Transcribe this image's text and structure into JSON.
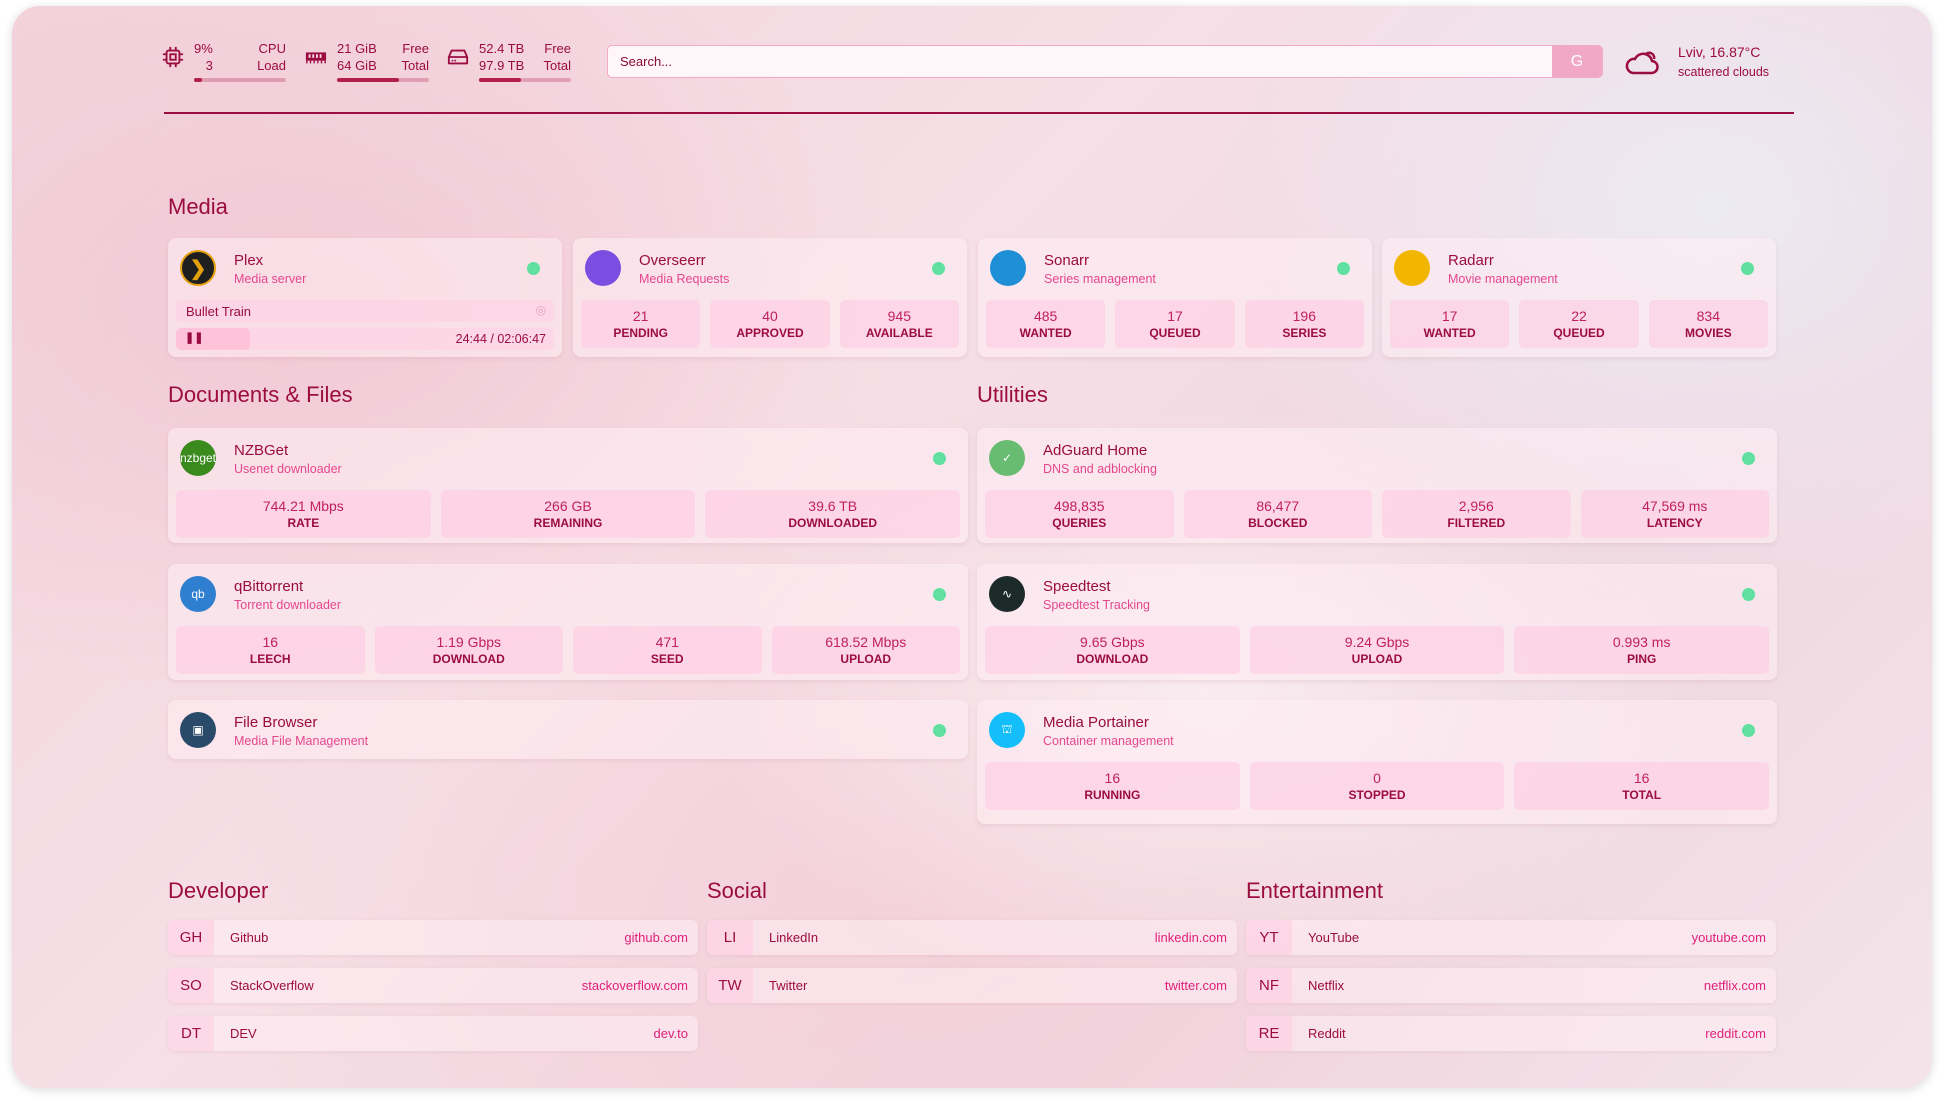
{
  "header": {
    "cpu": {
      "usage": "9%",
      "cores": "3",
      "label1": "CPU",
      "label2": "Load",
      "percent": 9
    },
    "memory": {
      "free": "21 GiB",
      "total": "64 GiB",
      "label1": "Free",
      "label2": "Total",
      "percent": 67
    },
    "disk": {
      "free": "52.4 TB",
      "total": "97.9 TB",
      "label1": "Free",
      "label2": "Total",
      "percent": 46
    },
    "search": {
      "placeholder": "Search...",
      "provider": "G"
    },
    "weather": {
      "location": "Lviv, 16.87°C",
      "condition": "scattered clouds",
      "icon": "cloud-icon"
    }
  },
  "sections": {
    "media": "Media",
    "docs": "Documents & Files",
    "utilities": "Utilities",
    "developer": "Developer",
    "social": "Social",
    "entertainment": "Entertainment"
  },
  "plex": {
    "title": "Plex",
    "subtitle": "Media server",
    "now_playing": "Bullet Train",
    "time": "24:44 / 02:06:47",
    "progress": 19.5
  },
  "media_cards": [
    {
      "title": "Overseerr",
      "subtitle": "Media Requests",
      "icon_color": "#7b4de0",
      "stats": [
        {
          "v": "21",
          "l": "PENDING"
        },
        {
          "v": "40",
          "l": "APPROVED"
        },
        {
          "v": "945",
          "l": "AVAILABLE"
        }
      ]
    },
    {
      "title": "Sonarr",
      "subtitle": "Series management",
      "icon_color": "#1e8fd6",
      "stats": [
        {
          "v": "485",
          "l": "WANTED"
        },
        {
          "v": "17",
          "l": "QUEUED"
        },
        {
          "v": "196",
          "l": "SERIES"
        }
      ]
    },
    {
      "title": "Radarr",
      "subtitle": "Movie management",
      "icon_color": "#f2b600",
      "stats": [
        {
          "v": "17",
          "l": "WANTED"
        },
        {
          "v": "22",
          "l": "QUEUED"
        },
        {
          "v": "834",
          "l": "MOVIES"
        }
      ]
    }
  ],
  "docs_cards": [
    {
      "title": "NZBGet",
      "subtitle": "Usenet downloader",
      "icon_text": "nzbget",
      "icon_color": "#3a8a1e",
      "stats": [
        {
          "v": "744.21 Mbps",
          "l": "RATE"
        },
        {
          "v": "266 GB",
          "l": "REMAINING"
        },
        {
          "v": "39.6 TB",
          "l": "DOWNLOADED"
        }
      ]
    },
    {
      "title": "qBittorrent",
      "subtitle": "Torrent downloader",
      "icon_text": "qb",
      "icon_color": "#2f7fd0",
      "stats": [
        {
          "v": "16",
          "l": "LEECH"
        },
        {
          "v": "1.19 Gbps",
          "l": "DOWNLOAD"
        },
        {
          "v": "471",
          "l": "SEED"
        },
        {
          "v": "618.52 Mbps",
          "l": "UPLOAD"
        }
      ]
    },
    {
      "title": "File Browser",
      "subtitle": "Media File Management",
      "icon_text": "▣",
      "icon_color": "#2a4a6a",
      "stats": []
    }
  ],
  "util_cards": [
    {
      "title": "AdGuard Home",
      "subtitle": "DNS and adblocking",
      "icon_text": "✓",
      "icon_color": "#68bc71",
      "stats": [
        {
          "v": "498,835",
          "l": "QUERIES"
        },
        {
          "v": "86,477",
          "l": "BLOCKED"
        },
        {
          "v": "2,956",
          "l": "FILTERED"
        },
        {
          "v": "47,569 ms",
          "l": "LATENCY"
        }
      ]
    },
    {
      "title": "Speedtest",
      "subtitle": "Speedtest Tracking",
      "icon_text": "∿",
      "icon_color": "#1c2a2a",
      "stats": [
        {
          "v": "9.65 Gbps",
          "l": "DOWNLOAD"
        },
        {
          "v": "9.24 Gbps",
          "l": "UPLOAD"
        },
        {
          "v": "0.993 ms",
          "l": "PING"
        }
      ]
    },
    {
      "title": "Media Portainer",
      "subtitle": "Container management",
      "icon_text": "⛫",
      "icon_color": "#13bef9",
      "stats": [
        {
          "v": "16",
          "l": "RUNNING"
        },
        {
          "v": "0",
          "l": "STOPPED"
        },
        {
          "v": "16",
          "l": "TOTAL"
        }
      ]
    }
  ],
  "bookmarks": {
    "developer": [
      {
        "abbr": "GH",
        "name": "Github",
        "url": "github.com"
      },
      {
        "abbr": "SO",
        "name": "StackOverflow",
        "url": "stackoverflow.com"
      },
      {
        "abbr": "DT",
        "name": "DEV",
        "url": "dev.to"
      }
    ],
    "social": [
      {
        "abbr": "LI",
        "name": "LinkedIn",
        "url": "linkedin.com"
      },
      {
        "abbr": "TW",
        "name": "Twitter",
        "url": "twitter.com"
      }
    ],
    "entertainment": [
      {
        "abbr": "YT",
        "name": "YouTube",
        "url": "youtube.com"
      },
      {
        "abbr": "NF",
        "name": "Netflix",
        "url": "netflix.com"
      },
      {
        "abbr": "RE",
        "name": "Reddit",
        "url": "reddit.com"
      }
    ]
  },
  "colors": {
    "accent": "#9b0c40",
    "subtitle": "#e5478e",
    "status_ok": "#5fe0a0"
  }
}
